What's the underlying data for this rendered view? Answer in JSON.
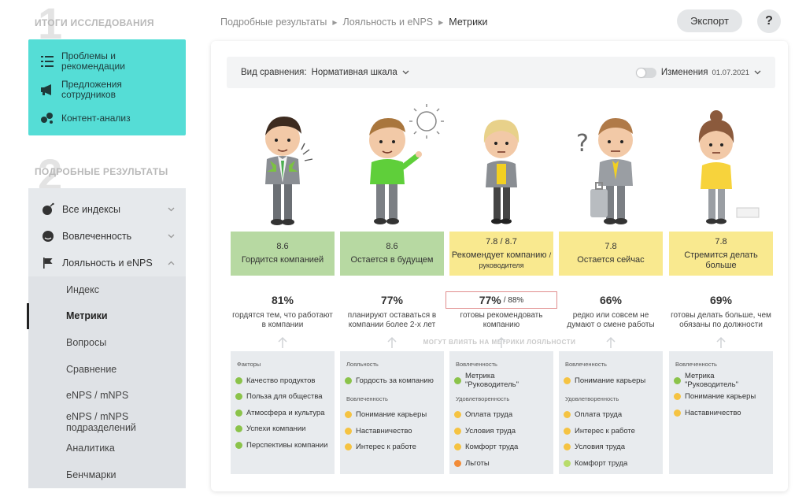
{
  "sidebar": {
    "section1": {
      "number": "1",
      "title": "ИТОГИ ИССЛЕДОВАНИЯ"
    },
    "summary_items": [
      {
        "icon": "list-icon",
        "label": "Проблемы и рекомендации"
      },
      {
        "icon": "megaphone-icon",
        "label": "Предложения сотрудников"
      },
      {
        "icon": "bubbles-icon",
        "label": "Контент-анализ"
      }
    ],
    "section2": {
      "number": "2",
      "title": "ПОДРОБНЫЕ РЕЗУЛЬТАТЫ"
    },
    "nav": [
      {
        "icon": "bomb-icon",
        "label": "Все индексы"
      },
      {
        "icon": "face-icon",
        "label": "Вовлеченность"
      },
      {
        "icon": "flag-icon",
        "label": "Лояльность и eNPS"
      }
    ],
    "sub_items": [
      "Индекс",
      "Метрики",
      "Вопросы",
      "Сравнение",
      "eNPS / mNPS",
      "eNPS / mNPS подразделений",
      "Аналитика",
      "Бенчмарки"
    ]
  },
  "header": {
    "breadcrumb": [
      "Подробные результаты",
      "Лояльность и eNPS",
      "Метрики"
    ],
    "export_label": "Экспорт",
    "help_label": "?"
  },
  "filter": {
    "label": "Вид сравнения:",
    "value": "Нормативная шкала",
    "changes_label": "Изменения",
    "date": "01.07.2021"
  },
  "influence_label": "МОГУТ ВЛИЯТЬ НА МЕТРИКИ ЛОЯЛЬНОСТИ",
  "colors": {
    "green": "#8bc34a",
    "yellow": "#f5c342",
    "orange": "#f28c38",
    "lightgreen": "#b8dc6a"
  },
  "metrics": [
    {
      "score": "8.6",
      "title": "Гордится компанией",
      "title_small": "",
      "pct": "81%",
      "pct_extra": "",
      "desc": "гордятся тем, что работают в компании",
      "groups": [
        {
          "head": "Факторы",
          "items": [
            {
              "label": "Качество продуктов",
              "color": "green"
            },
            {
              "label": "Польза для общества",
              "color": "green"
            },
            {
              "label": "Атмосфера и культура",
              "color": "green"
            },
            {
              "label": "Успехи компании",
              "color": "green"
            },
            {
              "label": "Перспективы компании",
              "color": "green"
            }
          ]
        }
      ]
    },
    {
      "score": "8.6",
      "title": "Остается в будущем",
      "title_small": "",
      "pct": "77%",
      "pct_extra": "",
      "desc": "планируют оставаться в компании более 2-х лет",
      "groups": [
        {
          "head": "Лояльность",
          "items": [
            {
              "label": "Гордость за компанию",
              "color": "green"
            }
          ]
        },
        {
          "head": "Вовлеченность",
          "items": [
            {
              "label": "Понимание карьеры",
              "color": "yellow"
            },
            {
              "label": "Наставничество",
              "color": "yellow"
            },
            {
              "label": "Интерес к работе",
              "color": "yellow"
            }
          ]
        }
      ]
    },
    {
      "score": "7.8 / 8.7",
      "title": "Рекомендует компанию",
      "title_small": "/ руководителя",
      "pct": "77%",
      "pct_extra": "/ 88%",
      "desc": "готовы рекомендовать компанию",
      "groups": [
        {
          "head": "Вовлеченность",
          "items": [
            {
              "label": "Метрика \"Руководитель\"",
              "color": "green"
            }
          ]
        },
        {
          "head": "Удовлетворенность",
          "items": [
            {
              "label": "Оплата труда",
              "color": "yellow"
            },
            {
              "label": "Условия труда",
              "color": "yellow"
            },
            {
              "label": "Комфорт труда",
              "color": "yellow"
            },
            {
              "label": "Льготы",
              "color": "orange"
            }
          ]
        }
      ]
    },
    {
      "score": "7.8",
      "title": "Остается сейчас",
      "title_small": "",
      "pct": "66%",
      "pct_extra": "",
      "desc": "редко или совсем не думают о смене работы",
      "groups": [
        {
          "head": "Вовлеченность",
          "items": [
            {
              "label": "Понимание карьеры",
              "color": "yellow"
            }
          ]
        },
        {
          "head": "Удовлетворенность",
          "items": [
            {
              "label": "Оплата труда",
              "color": "yellow"
            },
            {
              "label": "Интерес к работе",
              "color": "yellow"
            },
            {
              "label": "Условия труда",
              "color": "yellow"
            },
            {
              "label": "Комфорт труда",
              "color": "lightgreen"
            }
          ]
        }
      ]
    },
    {
      "score": "7.8",
      "title": "Стремится делать больше",
      "title_small": "",
      "pct": "69%",
      "pct_extra": "",
      "desc": "готовы делать больше, чем обязаны по должности",
      "groups": [
        {
          "head": "Вовлеченность",
          "items": [
            {
              "label": "Метрика \"Руководитель\"",
              "color": "green"
            },
            {
              "label": "Понимание карьеры",
              "color": "yellow"
            },
            {
              "label": "Наставничество",
              "color": "yellow"
            }
          ]
        }
      ]
    }
  ]
}
